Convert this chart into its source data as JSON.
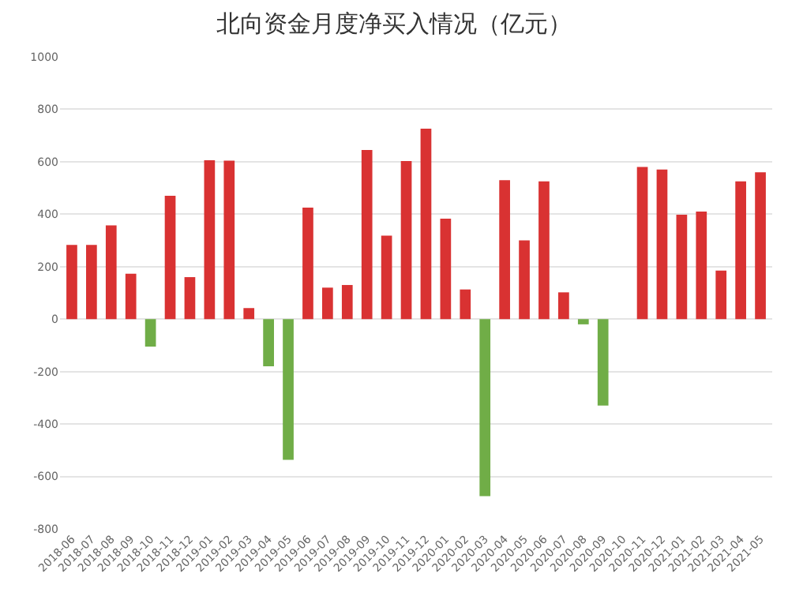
{
  "chart_data": {
    "type": "bar",
    "title": "北向资金月度净买入情况（亿元）",
    "categories": [
      "2018-06",
      "2018-07",
      "2018-08",
      "2018-09",
      "2018-10",
      "2018-11",
      "2018-12",
      "2019-01",
      "2019-02",
      "2019-03",
      "2019-04",
      "2019-05",
      "2019-06",
      "2019-07",
      "2019-08",
      "2019-09",
      "2019-10",
      "2019-11",
      "2019-12",
      "2020-01",
      "2020-02",
      "2020-03",
      "2020-04",
      "2020-05",
      "2020-06",
      "2020-07",
      "2020-08",
      "2020-09",
      "2020-10",
      "2020-11",
      "2020-12",
      "2021-01",
      "2021-02",
      "2021-03",
      "2021-04",
      "2021-05"
    ],
    "values": [
      283,
      283,
      357,
      173,
      -105,
      470,
      160,
      606,
      604,
      42,
      -180,
      -537,
      425,
      120,
      130,
      645,
      318,
      603,
      726,
      383,
      113,
      -675,
      530,
      300,
      525,
      102,
      -20,
      -330,
      0,
      580,
      570,
      398,
      410,
      185,
      525,
      560
    ],
    "colors": [
      "#d93232",
      "#d93232",
      "#d93232",
      "#d93232",
      "#70ad47",
      "#d93232",
      "#d93232",
      "#d93232",
      "#d93232",
      "#d93232",
      "#70ad47",
      "#70ad47",
      "#d93232",
      "#d93232",
      "#d93232",
      "#d93232",
      "#d93232",
      "#d93232",
      "#d93232",
      "#d93232",
      "#d93232",
      "#70ad47",
      "#d93232",
      "#d93232",
      "#d93232",
      "#d93232",
      "#70ad47",
      "#70ad47",
      "#d93232",
      "#d93232",
      "#d93232",
      "#d93232",
      "#d93232",
      "#d93232",
      "#d93232",
      "#d93232"
    ],
    "ylim": [
      -800,
      1000
    ],
    "yticks": [
      -800,
      -600,
      -400,
      -200,
      0,
      200,
      400,
      600,
      800,
      1000
    ],
    "grid": "y",
    "legend": false
  }
}
